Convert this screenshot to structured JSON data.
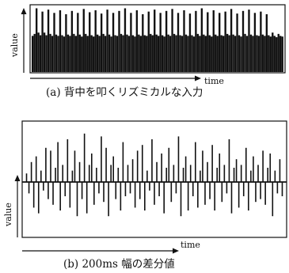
{
  "figure": {
    "panel_a": {
      "ylabel": "value",
      "xlabel": "time",
      "caption": "(a) 背中を叩くリズミカルな入力"
    },
    "panel_b": {
      "ylabel": "value",
      "xlabel": "time",
      "caption": "(b) 200ms 幅の差分値"
    }
  },
  "colors": {
    "ink": "#111111",
    "background": "#ffffff"
  },
  "chart_data": [
    {
      "type": "bar",
      "title": "(a) 背中を叩くリズミカルな入力",
      "xlabel": "time",
      "ylabel": "value",
      "x_ticks": false,
      "y_ticks": false,
      "ylim": [
        0,
        1
      ],
      "description_of_values": "normalized amplitude, read off the figure (no tick labels)",
      "values": [
        0.55,
        0.58,
        0.97,
        0.6,
        0.56,
        0.92,
        0.6,
        0.56,
        0.95,
        0.58,
        0.55,
        0.9,
        0.57,
        0.55,
        0.94,
        0.56,
        0.54,
        0.88,
        0.57,
        0.55,
        0.93,
        0.58,
        0.55,
        0.9,
        0.57,
        0.54,
        0.96,
        0.58,
        0.55,
        0.91,
        0.56,
        0.54,
        0.94,
        0.57,
        0.55,
        0.89,
        0.58,
        0.55,
        0.95,
        0.57,
        0.54,
        0.9,
        0.56,
        0.55,
        0.93,
        0.58,
        0.56,
        0.97,
        0.57,
        0.55,
        0.9,
        0.56,
        0.54,
        0.94,
        0.57,
        0.55,
        0.88,
        0.56,
        0.55,
        0.92,
        0.58,
        0.56,
        0.95,
        0.57,
        0.55,
        0.9,
        0.56,
        0.54,
        0.93,
        0.57,
        0.55,
        0.96,
        0.58,
        0.56,
        0.9,
        0.56,
        0.55,
        0.94,
        0.57,
        0.55,
        0.89,
        0.56,
        0.54,
        0.93,
        0.58,
        0.55,
        0.97,
        0.57,
        0.55,
        0.91,
        0.56,
        0.54,
        0.94,
        0.57,
        0.55,
        0.9,
        0.56,
        0.55,
        0.92,
        0.58,
        0.56,
        0.96,
        0.57,
        0.55,
        0.89,
        0.56,
        0.54,
        0.93,
        0.58,
        0.55,
        0.95,
        0.57,
        0.55,
        0.9,
        0.56,
        0.55,
        0.92,
        0.57,
        0.55,
        0.88,
        0.56,
        0.54,
        0.6,
        0.55,
        0.53,
        0.58,
        0.55,
        0.54
      ]
    },
    {
      "type": "bar",
      "title": "(b) 200ms 幅の差分値",
      "xlabel": "time",
      "ylabel": "value",
      "x_ticks": false,
      "y_ticks": false,
      "ylim": [
        -1,
        1
      ],
      "description_of_values": "signed normalized differences, read off the figure (no tick labels)",
      "values": [
        0.15,
        -0.2,
        0.35,
        -0.45,
        0.45,
        -0.55,
        0.2,
        -0.15,
        0.6,
        -0.3,
        0.55,
        -0.4,
        0.25,
        0.7,
        -0.5,
        0.3,
        -0.25,
        0.75,
        -0.45,
        0.2,
        0.55,
        -0.6,
        0.35,
        -0.3,
        0.85,
        -0.55,
        0.3,
        0.5,
        -0.4,
        0.25,
        -0.2,
        0.8,
        -0.35,
        0.6,
        -0.6,
        0.3,
        0.45,
        -0.3,
        0.25,
        -0.5,
        0.7,
        -0.25,
        0.3,
        -0.2,
        0.4,
        -0.45,
        0.55,
        -0.3,
        0.65,
        -0.5,
        0.2,
        -0.15,
        0.75,
        -0.4,
        0.35,
        -0.25,
        0.5,
        -0.55,
        0.25,
        0.6,
        -0.35,
        0.3,
        -0.2,
        0.8,
        -0.6,
        0.25,
        0.45,
        -0.5,
        0.3,
        -0.25,
        0.7,
        -0.45,
        0.2,
        0.55,
        -0.4,
        0.35,
        -0.3,
        0.65,
        -0.5,
        0.25,
        0.5,
        -0.35,
        0.3,
        -0.2,
        0.75,
        -0.55,
        0.25,
        0.4,
        -0.45,
        0.3,
        -0.25,
        0.6,
        -0.5,
        0.2,
        0.45,
        -0.35,
        0.3,
        -0.3,
        0.55,
        -0.4,
        0.25,
        0.5,
        -0.6,
        0.2,
        -0.2,
        0.4,
        -0.25
      ]
    }
  ]
}
